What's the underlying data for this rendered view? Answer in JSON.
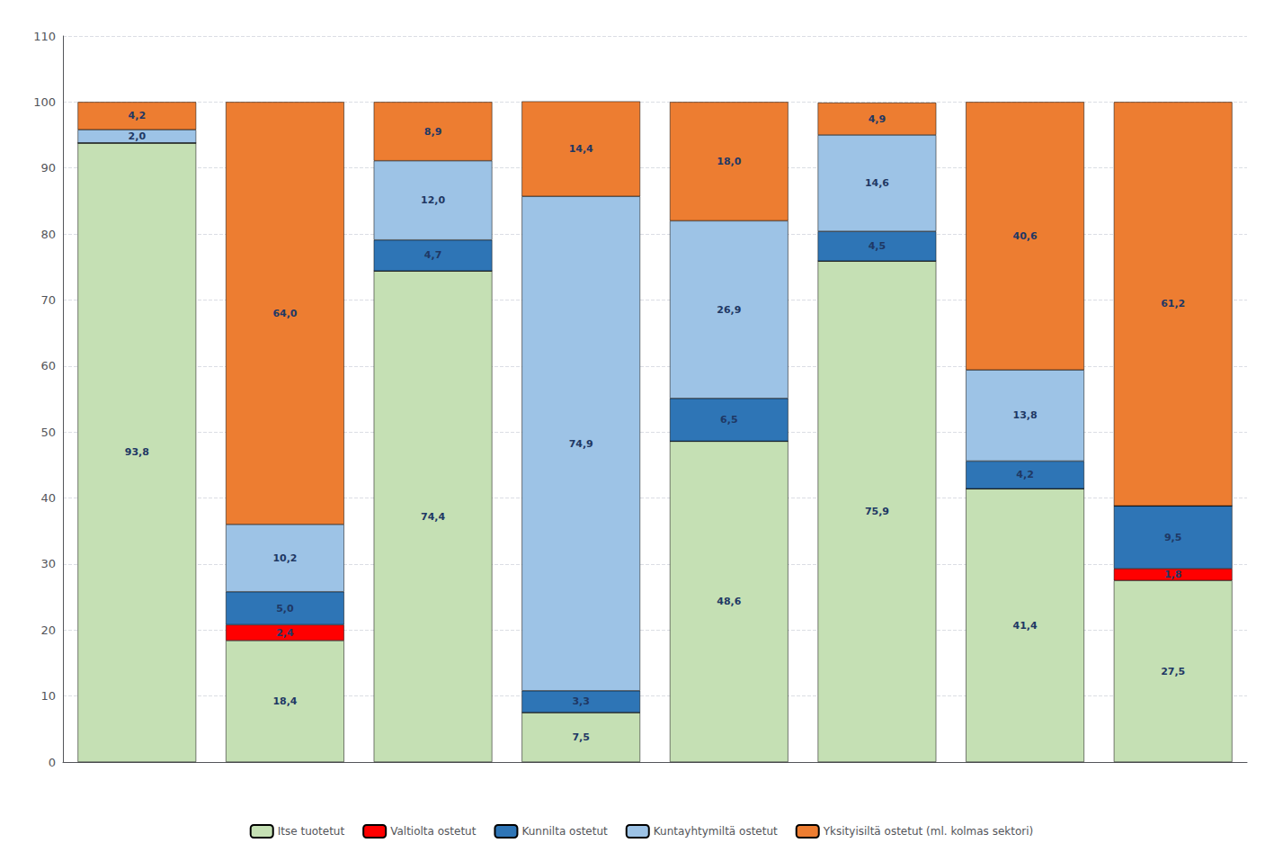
{
  "chart_data": {
    "type": "bar",
    "stacked": true,
    "categories": [
      null,
      null,
      null,
      null,
      null,
      null,
      null,
      null
    ],
    "series": [
      {
        "name": "Itse tuotetut",
        "color": "#c5e0b4",
        "values": [
          93.8,
          18.4,
          74.4,
          7.5,
          48.6,
          75.9,
          41.4,
          27.5
        ],
        "value_labels": [
          "93,8",
          "18,4",
          "74,4",
          "7,5",
          "48,6",
          "75,9",
          "41,4",
          "27,5"
        ]
      },
      {
        "name": "Valtiolta ostetut",
        "color": "#ff0000",
        "values": [
          0.0,
          2.4,
          0.0,
          0.0,
          0.0,
          0.0,
          0.0,
          1.8
        ],
        "value_labels": [
          null,
          "2,4",
          null,
          null,
          null,
          null,
          null,
          "1,8"
        ]
      },
      {
        "name": "Kunnilta ostetut",
        "color": "#2e75b6",
        "values": [
          0.0,
          5.0,
          4.7,
          3.3,
          6.5,
          4.5,
          4.2,
          9.5
        ],
        "value_labels": [
          null,
          "5,0",
          "4,7",
          "3,3",
          "6,5",
          "4,5",
          "4,2",
          "9,5"
        ]
      },
      {
        "name": "Kuntayhtymiltä ostetut",
        "color": "#9dc3e6",
        "values": [
          2.0,
          10.2,
          12.0,
          74.9,
          26.9,
          14.6,
          13.8,
          0.0
        ],
        "value_labels": [
          "2,0",
          "10,2",
          "12,0",
          "74,9",
          "26,9",
          "14,6",
          "13,8",
          null
        ]
      },
      {
        "name": "Yksityisiltä ostetut (ml. kolmas sektori)",
        "color": "#ed7d31",
        "values": [
          4.2,
          64.0,
          8.9,
          14.4,
          18.0,
          4.9,
          40.6,
          61.2
        ],
        "value_labels": [
          "4,2",
          "64,0",
          "8,9",
          "14,4",
          "18,0",
          "4,9",
          "40,6",
          "61,2"
        ]
      }
    ],
    "ylim": [
      0,
      110
    ],
    "yticks": [
      0,
      10,
      20,
      30,
      40,
      50,
      60,
      70,
      80,
      90,
      100,
      110
    ],
    "grid": true,
    "data_labels": true,
    "legend": "bottom"
  }
}
